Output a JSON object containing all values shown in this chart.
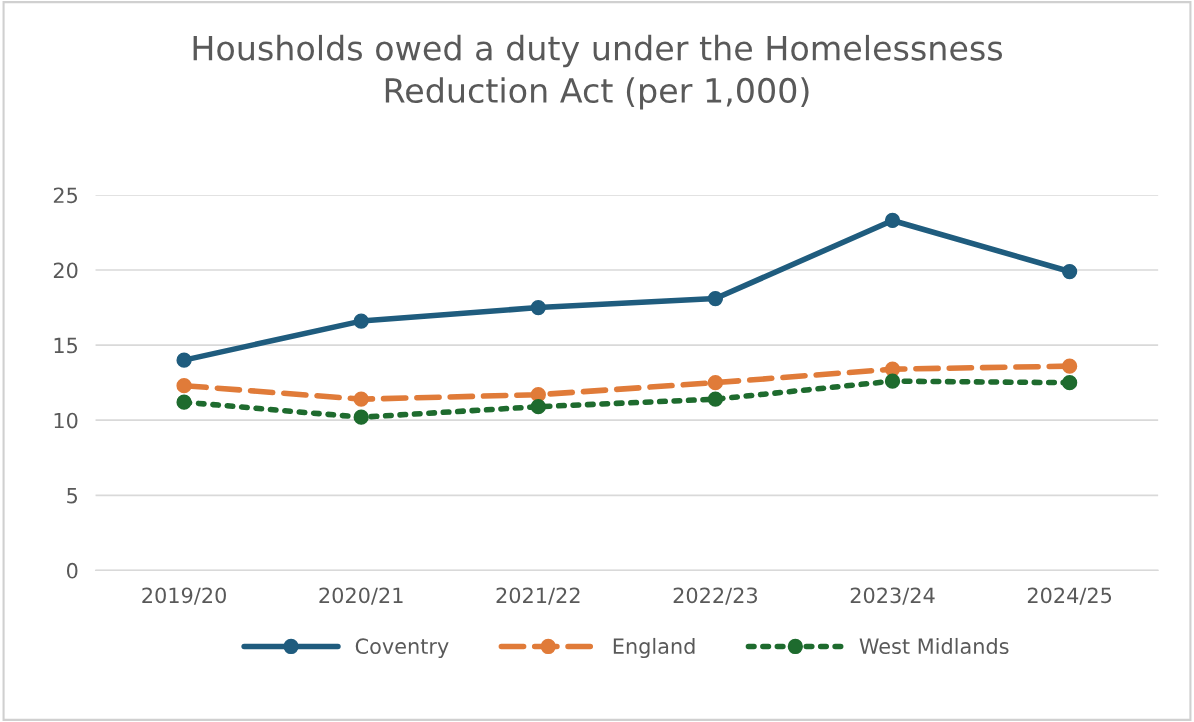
{
  "chart_data": {
    "type": "line",
    "title": "Housholds owed a duty under the Homelessness\nReduction Act (per 1,000)",
    "categories": [
      "2019/20",
      "2020/21",
      "2021/22",
      "2022/23",
      "2023/24",
      "2024/25"
    ],
    "series": [
      {
        "name": "Coventry",
        "color": "#1f5c7e",
        "line_style": "solid",
        "values": [
          14.0,
          16.6,
          17.5,
          18.1,
          23.3,
          19.9
        ]
      },
      {
        "name": "England",
        "color": "#e07b39",
        "line_style": "dashed",
        "values": [
          12.3,
          11.4,
          11.7,
          12.5,
          13.4,
          13.6
        ]
      },
      {
        "name": "West Midlands",
        "color": "#1e6b2e",
        "line_style": "dotted",
        "values": [
          11.2,
          10.2,
          10.9,
          11.4,
          12.6,
          12.5
        ]
      }
    ],
    "ylim": [
      0,
      25
    ],
    "yticks": [
      0,
      5,
      10,
      15,
      20,
      25
    ],
    "grid": "y",
    "legend": "bottom",
    "marker": "circle"
  }
}
